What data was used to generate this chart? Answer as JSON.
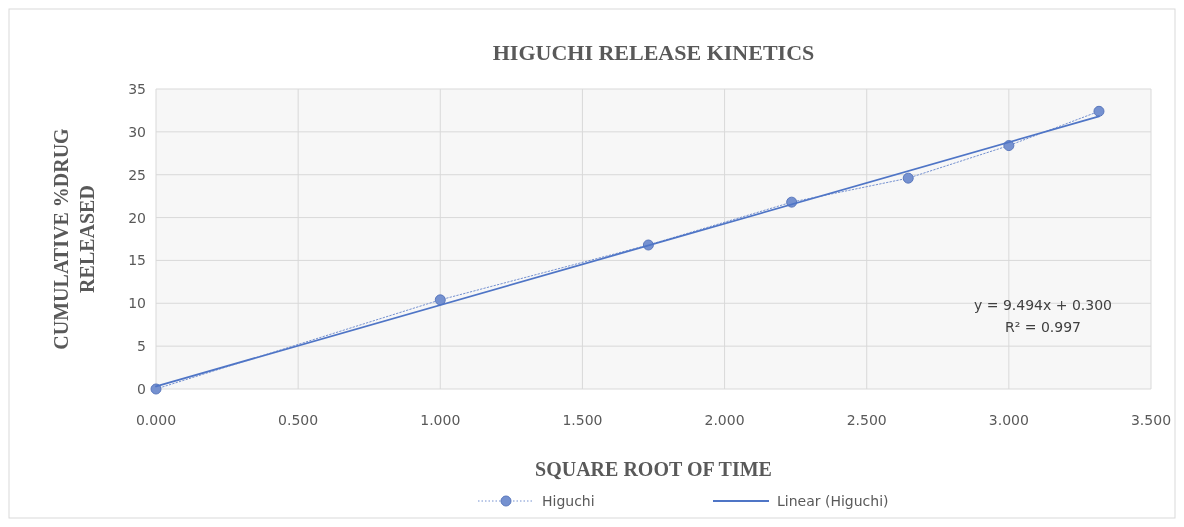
{
  "chart_data": {
    "type": "line",
    "title": "HIGUCHI RELEASE KINETICS",
    "xlabel": "SQUARE ROOT OF TIME",
    "ylabel": "CUMULATIVE %DRUG RELEASED",
    "xlim": [
      0,
      3.5
    ],
    "xticks": [
      {
        "value": 0,
        "label": "0.000"
      },
      {
        "value": 0.5,
        "label": "0.500"
      },
      {
        "value": 1,
        "label": "1.000"
      },
      {
        "value": 1.5,
        "label": "1.500"
      },
      {
        "value": 2,
        "label": "2.000"
      },
      {
        "value": 2.5,
        "label": "2.500"
      },
      {
        "value": 3,
        "label": "3.000"
      },
      {
        "value": 3.5,
        "label": "3.500"
      }
    ],
    "ylim": [
      0,
      35
    ],
    "yticks": [
      0,
      5,
      10,
      15,
      20,
      25,
      30,
      35
    ],
    "grid": true,
    "legend": "bottom",
    "series": [
      {
        "name": "Higuchi",
        "color": "#7591d0",
        "x": [
          0,
          1,
          1.732,
          2.236,
          2.646,
          3,
          3.317
        ],
        "values": [
          0,
          10.4,
          16.8,
          21.8,
          24.6,
          28.4,
          32.4
        ],
        "marker": "circle",
        "line_style": "dotted"
      },
      {
        "name": "Linear (Higuchi)",
        "color": "#4f75c6",
        "x": [
          0,
          3.317
        ],
        "values": [
          0.3,
          31.8
        ],
        "marker": "none",
        "line_style": "solid"
      }
    ],
    "annotations": [
      "y = 9.494x + 0.300",
      "R² = 0.997"
    ]
  }
}
